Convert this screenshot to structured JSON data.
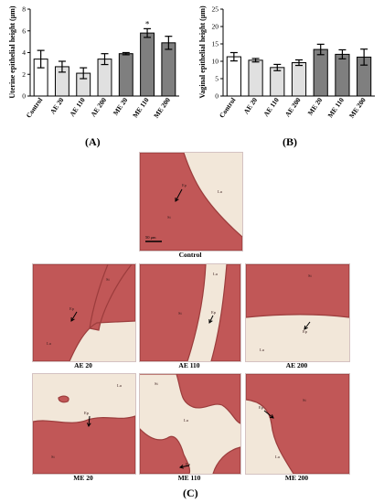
{
  "chart_data": [
    {
      "type": "bar",
      "panel": "(A)",
      "ylabel": "Uterine epithelial height (μm)",
      "ylim": [
        0,
        8
      ],
      "yticks": [
        0,
        2,
        4,
        6,
        8
      ],
      "categories": [
        "Control",
        "AE 20",
        "AE 110",
        "AE 200",
        "ME 20",
        "ME 110",
        "ME 200"
      ],
      "values": [
        3.4,
        2.7,
        2.1,
        3.4,
        3.9,
        5.8,
        4.9
      ],
      "errors": [
        0.8,
        0.5,
        0.5,
        0.5,
        0.1,
        0.4,
        0.6
      ],
      "fills": [
        "#ffffff",
        "#e0e0e0",
        "#e0e0e0",
        "#e0e0e0",
        "#7f7f7f",
        "#7f7f7f",
        "#7f7f7f"
      ],
      "significance": [
        "",
        "",
        "",
        "",
        "",
        "*",
        ""
      ],
      "grid": false,
      "legend": "none"
    },
    {
      "type": "bar",
      "panel": "(B)",
      "ylabel": "Vaginal epithelial height (μm)",
      "ylim": [
        0,
        25
      ],
      "yticks": [
        0,
        5,
        10,
        15,
        20,
        25
      ],
      "categories": [
        "Control",
        "AE 20",
        "AE 110",
        "AE 200",
        "ME 20",
        "ME 110",
        "ME 200"
      ],
      "values": [
        11.3,
        10.3,
        8.2,
        9.6,
        13.4,
        12.0,
        11.2
      ],
      "errors": [
        1.2,
        0.5,
        0.9,
        0.8,
        1.5,
        1.3,
        2.3
      ],
      "fills": [
        "#ffffff",
        "#e0e0e0",
        "#e0e0e0",
        "#e0e0e0",
        "#7f7f7f",
        "#7f7f7f",
        "#7f7f7f"
      ],
      "significance": [
        "",
        "",
        "",
        "",
        "",
        "",
        ""
      ],
      "grid": false,
      "legend": "none"
    }
  ],
  "histology": {
    "panel": "(C)",
    "scale_bar": "50 μm",
    "tissue_color": "#c15757",
    "lumen_color": "#f2e7d9",
    "images": [
      {
        "caption": "Control",
        "labels": [
          "Ep",
          "St",
          "Lu"
        ]
      },
      {
        "caption": "AE 20",
        "labels": [
          "St",
          "Ep",
          "Lu"
        ]
      },
      {
        "caption": "AE 110",
        "labels": [
          "Lu",
          "St",
          "Ep"
        ]
      },
      {
        "caption": "AE 200",
        "labels": [
          "St",
          "Ep",
          "Lu"
        ]
      },
      {
        "caption": "ME 20",
        "labels": [
          "Ep",
          "Lu",
          "St"
        ]
      },
      {
        "caption": "ME 110",
        "labels": [
          "St",
          "Lu",
          "Ep"
        ]
      },
      {
        "caption": "ME 200",
        "labels": [
          "Ep",
          "St",
          "Lu"
        ]
      }
    ]
  }
}
